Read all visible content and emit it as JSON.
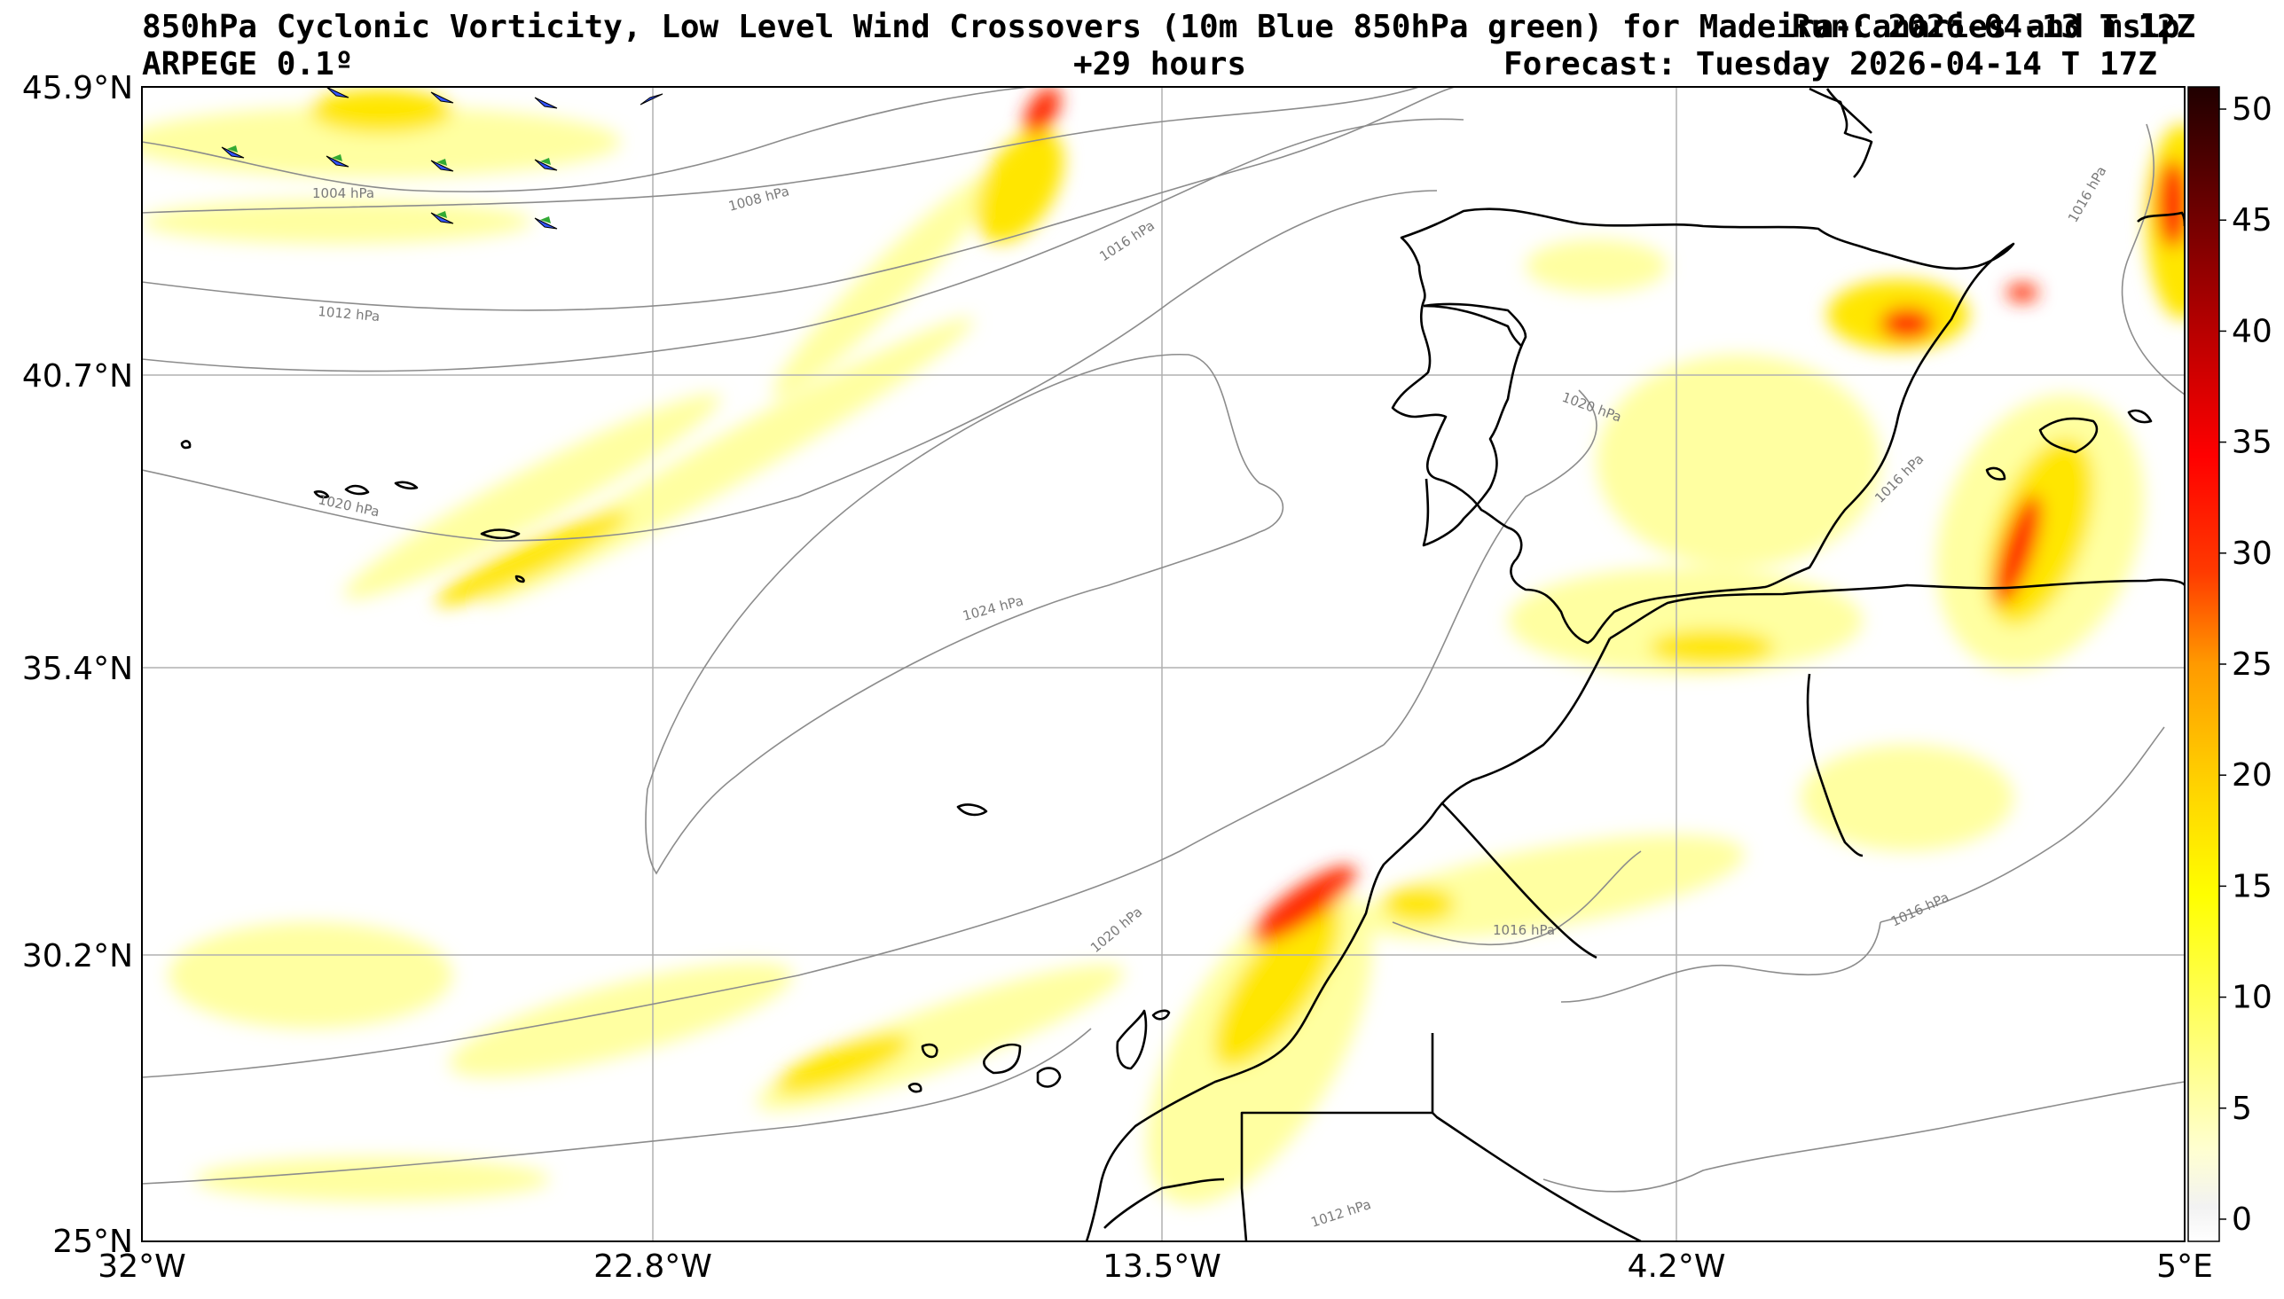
{
  "header": {
    "title_line1": "850hPa Cyclonic Vorticity, Low Level Wind Crossovers (10m Blue 850hPa green) for Madeira-Canaries and mslp",
    "run_text": "Run: 2026-04-13 T 12Z",
    "model": "ARPEGE 0.1º",
    "lead_time": "+29 hours",
    "forecast_valid": "Forecast: Tuesday 2026-04-14 T 17Z"
  },
  "map": {
    "lon_ticks": [
      "32°W",
      "22.8°W",
      "13.5°W",
      "4.2°W",
      "5°E"
    ],
    "lat_ticks": [
      "45.9°N",
      "40.7°N",
      "35.4°N",
      "30.2°N",
      "25°N"
    ],
    "isobar_labels": [
      "1004 hPa",
      "1008 hPa",
      "1012 hPa",
      "1016 hPa",
      "1020 hPa",
      "1024 hPa",
      "1020 hPa",
      "1016 hPa",
      "1016 hPa",
      "1016 hPa",
      "1020 hPa",
      "1016 hPa",
      "1012 hPa"
    ],
    "colors": {
      "coast": "#000000",
      "isobar": "#8c8c8c",
      "grid": "#b0b0b0",
      "wind_10m": "#3355ff",
      "wind_850": "#33aa33"
    }
  },
  "colorbar": {
    "tick_labels": [
      "50",
      "45",
      "40",
      "35",
      "30",
      "25",
      "20",
      "15",
      "10",
      "5",
      "0"
    ],
    "range": [
      -1,
      51
    ],
    "colors_low_to_high": [
      "#ffffff",
      "#ffffd0",
      "#ffff80",
      "#ffff00",
      "#ffe000",
      "#ffb000",
      "#ff7a00",
      "#ff2a00",
      "#dd0000",
      "#990000",
      "#3a0000"
    ]
  }
}
